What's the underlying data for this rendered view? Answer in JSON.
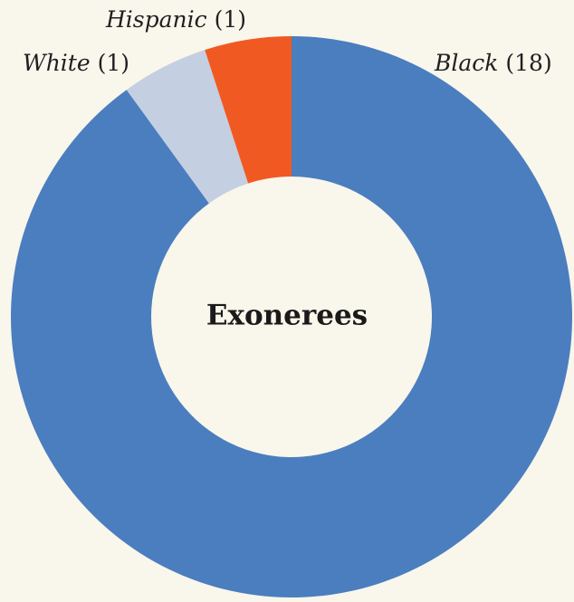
{
  "chart_data": {
    "type": "pie",
    "donut": true,
    "center_label": "Exonerees",
    "title": "",
    "categories": [
      "Black",
      "White",
      "Hispanic"
    ],
    "values": [
      18,
      1,
      1
    ],
    "labels": [
      "Black (18)",
      "White (1)",
      "Hispanic (1)"
    ],
    "label_categories": [
      "Black",
      "White",
      "Hispanic"
    ],
    "label_counts": [
      "(18)",
      "(1)",
      "(1)"
    ],
    "colors": [
      "#4a7ebf",
      "#c4cfe2",
      "#f05a22"
    ],
    "start": "top",
    "direction": "clockwise",
    "legend": "none"
  },
  "page": {
    "background": "#f9f6ec"
  }
}
